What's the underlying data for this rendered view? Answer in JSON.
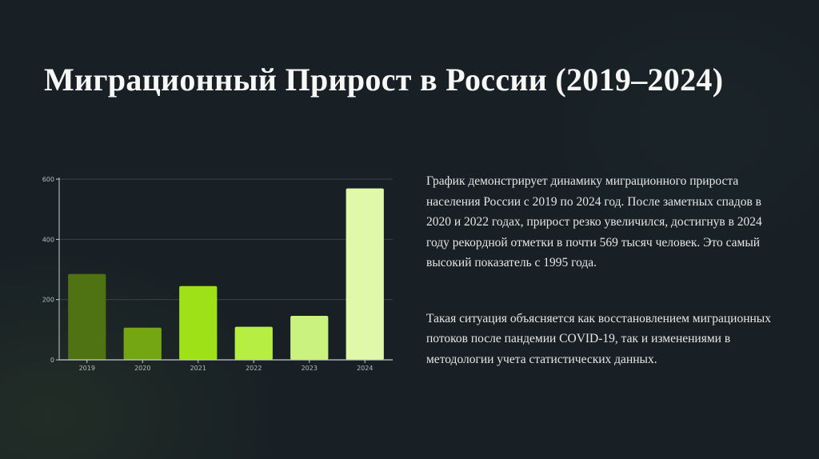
{
  "slide": {
    "title": "Миграционный Прирост в России (2019–2024)",
    "paragraphs": [
      "График демонстрирует динамику миграционного прироста населения России с 2019 по 2024 год. После заметных спадов в 2020 и 2022 годах, прирост резко увеличился, достигнув в 2024 году рекордной отметки в почти 569 тысяч человек. Это самый высокий показатель с 1995 года.",
      "Такая ситуация объясняется как восстановлением миграционных потоков после пандемии COVID-19, так и изменениями в методологии учета статистических данных."
    ]
  },
  "chart_data": {
    "type": "bar",
    "categories": [
      "2019",
      "2020",
      "2021",
      "2022",
      "2023",
      "2024"
    ],
    "values": [
      285,
      107,
      245,
      110,
      146,
      569
    ],
    "bar_colors": [
      "#4f7213",
      "#74a614",
      "#9ee117",
      "#b7ee42",
      "#caf27f",
      "#e0f8aa"
    ],
    "ylim": [
      0,
      600
    ],
    "yticks": [
      0,
      200,
      400,
      600
    ],
    "grid": true,
    "axis_color": "#c9cccd",
    "grid_color": "#3a4348",
    "tick_label_color": "#b8bcbe"
  }
}
